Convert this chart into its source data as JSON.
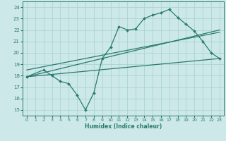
{
  "title": "",
  "xlabel": "Humidex (Indice chaleur)",
  "xlim": [
    -0.5,
    23.5
  ],
  "ylim": [
    14.5,
    24.5
  ],
  "xticks": [
    0,
    1,
    2,
    3,
    4,
    5,
    6,
    7,
    8,
    9,
    10,
    11,
    12,
    13,
    14,
    15,
    16,
    17,
    18,
    19,
    20,
    21,
    22,
    23
  ],
  "yticks": [
    15,
    16,
    17,
    18,
    19,
    20,
    21,
    22,
    23,
    24
  ],
  "line_color": "#2a7a6e",
  "bg_color": "#cce8e8",
  "grid_color": "#aad4d4",
  "line1_x": [
    0,
    2,
    3,
    4,
    5,
    6,
    7,
    8,
    9,
    10,
    11,
    12,
    13,
    14,
    15,
    16,
    17,
    18,
    19,
    20,
    21,
    22,
    23
  ],
  "line1_y": [
    17.9,
    18.5,
    18.0,
    17.5,
    17.3,
    16.3,
    15.0,
    16.5,
    19.5,
    20.5,
    22.3,
    22.0,
    22.1,
    23.0,
    23.3,
    23.5,
    23.8,
    23.1,
    22.5,
    21.9,
    21.0,
    20.0,
    19.5
  ],
  "line2_x": [
    0,
    23
  ],
  "line2_y": [
    17.9,
    19.5
  ],
  "line3_x": [
    0,
    23
  ],
  "line3_y": [
    17.9,
    22.0
  ],
  "line4_x": [
    0,
    23
  ],
  "line4_y": [
    18.5,
    21.8
  ]
}
